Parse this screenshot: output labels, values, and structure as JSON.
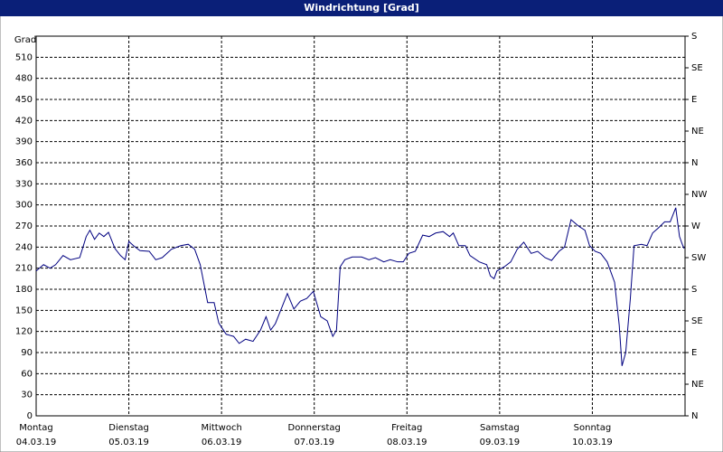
{
  "chart_data": {
    "type": "line",
    "title": "Windrichtung [Grad]",
    "ylabel": "Grad",
    "xlim": [
      0,
      7
    ],
    "xticks": [
      {
        "value": 0,
        "label": "Montag"
      },
      {
        "value": 1,
        "label": "Dienstag"
      },
      {
        "value": 2,
        "label": "Mittwoch"
      },
      {
        "value": 3,
        "label": "Donnerstag"
      },
      {
        "value": 4,
        "label": "Freitag"
      },
      {
        "value": 5,
        "label": "Samstag"
      },
      {
        "value": 6,
        "label": "Sonntag"
      }
    ],
    "xtick_dates": [
      "04.03.19",
      "05.03.19",
      "06.03.19",
      "07.03.19",
      "08.03.19",
      "09.03.19",
      "10.03.19"
    ],
    "ylim": [
      0,
      540
    ],
    "yticks": [
      0,
      30,
      60,
      90,
      120,
      150,
      180,
      210,
      240,
      270,
      300,
      330,
      360,
      390,
      420,
      450,
      480,
      510
    ],
    "y2lim": [
      0,
      540
    ],
    "y2ticks": [
      {
        "value": 0,
        "label": "N"
      },
      {
        "value": 45,
        "label": "NE"
      },
      {
        "value": 90,
        "label": "E"
      },
      {
        "value": 135,
        "label": "SE"
      },
      {
        "value": 180,
        "label": "S"
      },
      {
        "value": 225,
        "label": "SW"
      },
      {
        "value": 270,
        "label": "W"
      },
      {
        "value": 315,
        "label": "NW"
      },
      {
        "value": 360,
        "label": "N"
      },
      {
        "value": 405,
        "label": "NE"
      },
      {
        "value": 450,
        "label": "E"
      },
      {
        "value": 495,
        "label": "SE"
      },
      {
        "value": 540,
        "label": "S"
      }
    ],
    "grid": true,
    "series": [
      {
        "color": "#000080",
        "x": [
          0,
          0.08,
          0.15,
          0.21,
          0.29,
          0.37,
          0.47,
          0.54,
          0.58,
          0.63,
          0.68,
          0.73,
          0.78,
          0.85,
          0.91,
          0.96,
          1.0,
          1.05,
          1.12,
          1.22,
          1.29,
          1.36,
          1.46,
          1.56,
          1.64,
          1.71,
          1.77,
          1.85,
          1.92,
          1.97,
          2.05,
          2.13,
          2.19,
          2.26,
          2.34,
          2.42,
          2.48,
          2.53,
          2.58,
          2.65,
          2.71,
          2.78,
          2.85,
          2.92,
          2.99,
          3.07,
          3.14,
          3.2,
          3.24,
          3.28,
          3.33,
          3.41,
          3.51,
          3.59,
          3.66,
          3.75,
          3.82,
          3.9,
          3.96,
          4.02,
          4.09,
          4.17,
          4.24,
          4.31,
          4.39,
          4.46,
          4.5,
          4.56,
          4.63,
          4.68,
          4.78,
          4.86,
          4.9,
          4.94,
          4.97,
          5.05,
          5.12,
          5.19,
          5.26,
          5.34,
          5.41,
          5.49,
          5.56,
          5.64,
          5.7,
          5.77,
          5.85,
          5.92,
          5.97,
          6.03,
          6.09,
          6.16,
          6.24,
          6.29,
          6.32,
          6.36,
          6.41,
          6.45,
          6.53,
          6.59,
          6.65,
          6.71,
          6.78,
          6.84,
          6.9,
          6.94,
          6.97,
          6.99
        ],
        "values": [
          206,
          215,
          210,
          215,
          228,
          222,
          225,
          255,
          264,
          251,
          260,
          255,
          261,
          238,
          228,
          222,
          248,
          242,
          235,
          234,
          222,
          225,
          237,
          242,
          244,
          237,
          215,
          161,
          161,
          132,
          116,
          113,
          103,
          109,
          106,
          122,
          141,
          122,
          131,
          154,
          174,
          152,
          163,
          167,
          177,
          141,
          135,
          113,
          122,
          212,
          222,
          226,
          226,
          222,
          225,
          219,
          222,
          219,
          219,
          231,
          234,
          257,
          255,
          260,
          262,
          255,
          260,
          242,
          242,
          228,
          219,
          215,
          199,
          195,
          206,
          212,
          219,
          237,
          247,
          231,
          234,
          225,
          221,
          234,
          240,
          279,
          270,
          264,
          242,
          234,
          231,
          219,
          190,
          129,
          71,
          90,
          167,
          242,
          244,
          242,
          260,
          267,
          276,
          276,
          296,
          255,
          244,
          238
        ]
      }
    ]
  }
}
